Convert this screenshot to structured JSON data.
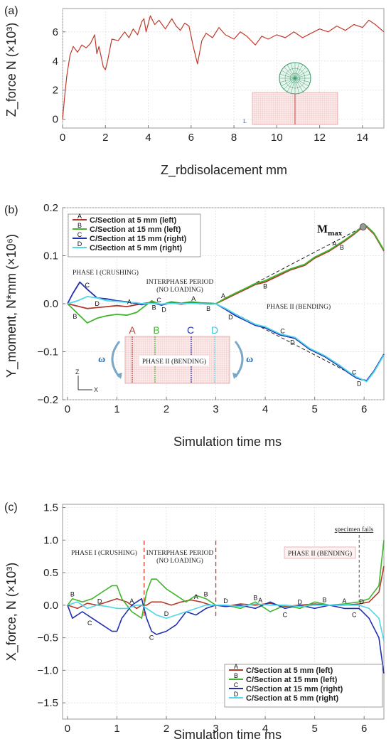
{
  "panel_labels": {
    "a": "(a)",
    "b": "(b)",
    "c": "(c)"
  },
  "colors": {
    "A": "#b23a2a",
    "B": "#3fb52c",
    "C": "#1f2fb0",
    "D": "#4fd6e8",
    "a_line": "#c0392b"
  },
  "panel_a": {
    "xlabel": "Z_rbdisolacement mm",
    "ylabel": "Z_force N (×10³)"
  },
  "panel_b": {
    "xlabel": "Simulation time ms",
    "ylabel": "Y_moment, N*mm (×10⁶)",
    "mmax_label": "M",
    "mmax_sub": "max",
    "phase1": "PHASE I (CRUSHING)",
    "interphase1": "INTERPHASE PERIOD",
    "interphase2": "(NO LOADING)",
    "phase2": "PHASE II (BENDING)",
    "inset_phase": "PHASE II (BENDING)",
    "inset_letters": [
      "A",
      "B",
      "C",
      "D"
    ],
    "omega": "ω",
    "axis_z": "Z",
    "axis_x": "X"
  },
  "panel_c": {
    "xlabel": "Simulation time ms",
    "ylabel": "X_force, N (×10³)",
    "phase1": "PHASE I (CRUSHING)",
    "interphase1": "INTERPHASE PERIOD",
    "interphase2": "(NO LOADING)",
    "phase2": "PHASE II (BENDING)",
    "fails": "specimen fails"
  },
  "legend": [
    {
      "letter": "A",
      "label": "C/Section at 5 mm (left)"
    },
    {
      "letter": "B",
      "label": "C/Section at 15 mm (left)"
    },
    {
      "letter": "C",
      "label": "C/Section at 15 mm (right)"
    },
    {
      "letter": "D",
      "label": "C/Section at 5 mm (right)"
    }
  ],
  "chart_data": [
    {
      "type": "line",
      "xlabel": "Z_rbdisolacement mm",
      "ylabel": "Z_force N (×10³)",
      "xlim": [
        0,
        15
      ],
      "ylim": [
        -0.6,
        7.6
      ],
      "xticks": [
        0,
        2,
        4,
        6,
        8,
        10,
        12,
        14
      ],
      "yticks": [
        0,
        2,
        4,
        6
      ],
      "grid": true,
      "series": [
        {
          "x": [
            0,
            0.1,
            0.2,
            0.35,
            0.5,
            0.7,
            0.9,
            1.1,
            1.3,
            1.5,
            1.6,
            1.7,
            1.9,
            2.0,
            2.1,
            2.3,
            2.6,
            2.9,
            3.1,
            3.3,
            3.5,
            3.7,
            3.8,
            3.9,
            4.1,
            4.3,
            4.5,
            4.8,
            5.1,
            5.3,
            5.5,
            5.7,
            5.9,
            6.1,
            6.3,
            6.5,
            6.7,
            7.0,
            7.3,
            7.6,
            8.0,
            8.3,
            8.6,
            9.0,
            9.3,
            9.6,
            10.0,
            10.4,
            10.8,
            11.2,
            11.6,
            12.0,
            12.4,
            12.8,
            13.2,
            13.6,
            14.0,
            14.3,
            14.6,
            15.0
          ],
          "y": [
            0,
            1.6,
            3.0,
            4.4,
            5.0,
            4.6,
            5.1,
            4.9,
            5.2,
            5.8,
            4.5,
            5.0,
            3.6,
            3.4,
            4.0,
            5.5,
            5.4,
            6.0,
            5.6,
            6.2,
            5.8,
            6.7,
            6.9,
            6.0,
            7.1,
            6.5,
            6.8,
            6.2,
            6.9,
            6.4,
            6.1,
            6.6,
            6.4,
            5.0,
            3.8,
            5.4,
            5.9,
            5.6,
            6.3,
            5.8,
            5.5,
            6.0,
            5.7,
            5.1,
            5.7,
            5.5,
            5.8,
            5.6,
            6.0,
            5.6,
            5.9,
            6.2,
            6.0,
            6.4,
            6.1,
            6.5,
            6.3,
            6.8,
            6.5,
            6.0
          ]
        }
      ]
    },
    {
      "type": "line",
      "xlabel": "Simulation time ms",
      "ylabel": "Y_moment, N*mm (×10⁶)",
      "xlim": [
        -0.1,
        6.4
      ],
      "ylim": [
        -0.2,
        0.2
      ],
      "xticks": [
        0,
        1,
        2,
        3,
        4,
        5,
        6
      ],
      "yticks": [
        -0.2,
        -0.1,
        0.0,
        0.1,
        0.2
      ],
      "grid": true,
      "legend": "top-left",
      "series": [
        {
          "name": "C/Section at 5 mm (left)",
          "x": [
            0,
            0.2,
            0.4,
            0.6,
            0.8,
            1.0,
            1.2,
            1.4,
            1.5,
            1.7,
            1.9,
            2.1,
            2.3,
            2.5,
            2.7,
            2.9,
            3.0,
            3.2,
            3.4,
            3.6,
            3.8,
            4.0,
            4.2,
            4.5,
            4.8,
            5.0,
            5.3,
            5.6,
            5.8,
            5.95,
            6.05,
            6.2,
            6.4
          ],
          "y": [
            0.0,
            -0.005,
            -0.01,
            -0.008,
            -0.006,
            -0.004,
            -0.006,
            -0.002,
            0.0,
            0.003,
            -0.002,
            0.002,
            -0.001,
            0.002,
            0.0,
            0.001,
            0.0,
            0.01,
            0.02,
            0.03,
            0.04,
            0.045,
            0.055,
            0.07,
            0.08,
            0.095,
            0.11,
            0.13,
            0.145,
            0.158,
            0.16,
            0.145,
            0.11
          ]
        },
        {
          "name": "C/Section at 15 mm (left)",
          "x": [
            0,
            0.2,
            0.4,
            0.6,
            0.8,
            1.0,
            1.2,
            1.4,
            1.5,
            1.7,
            1.9,
            2.1,
            2.3,
            2.5,
            2.7,
            2.9,
            3.0,
            3.2,
            3.4,
            3.6,
            3.8,
            4.0,
            4.2,
            4.5,
            4.8,
            5.0,
            5.3,
            5.6,
            5.8,
            5.95,
            6.05,
            6.2,
            6.4
          ],
          "y": [
            0.0,
            -0.02,
            -0.04,
            -0.03,
            -0.025,
            -0.022,
            -0.024,
            -0.018,
            -0.01,
            0.006,
            -0.002,
            0.004,
            0.001,
            0.004,
            0.002,
            0.001,
            0.0,
            0.012,
            0.022,
            0.032,
            0.042,
            0.048,
            0.058,
            0.072,
            0.082,
            0.097,
            0.112,
            0.132,
            0.147,
            0.16,
            0.162,
            0.147,
            0.112
          ]
        },
        {
          "name": "C/Section at 15 mm (right)",
          "x": [
            0,
            0.1,
            0.25,
            0.4,
            0.6,
            0.8,
            1.0,
            1.2,
            1.4,
            1.5,
            1.7,
            1.9,
            2.1,
            2.3,
            2.5,
            2.7,
            2.9,
            3.0,
            3.2,
            3.4,
            3.6,
            3.8,
            4.0,
            4.3,
            4.6,
            4.9,
            5.2,
            5.5,
            5.7,
            5.85,
            5.95,
            6.05,
            6.2,
            6.4
          ],
          "y": [
            0.0,
            0.02,
            0.045,
            0.03,
            0.012,
            0.01,
            0.006,
            0.004,
            0.0,
            -0.002,
            0.002,
            -0.003,
            0.002,
            0.0,
            0.002,
            0.0,
            -0.001,
            0.0,
            -0.012,
            -0.025,
            -0.035,
            -0.045,
            -0.05,
            -0.065,
            -0.072,
            -0.095,
            -0.11,
            -0.13,
            -0.145,
            -0.155,
            -0.158,
            -0.16,
            -0.14,
            -0.105
          ]
        },
        {
          "name": "C/Section at 5 mm (right)",
          "x": [
            0,
            0.2,
            0.4,
            0.6,
            0.8,
            1.0,
            1.2,
            1.4,
            1.5,
            1.7,
            1.9,
            2.1,
            2.3,
            2.5,
            2.7,
            2.9,
            3.0,
            3.2,
            3.4,
            3.6,
            3.8,
            4.0,
            4.3,
            4.6,
            4.9,
            5.2,
            5.5,
            5.7,
            5.85,
            5.95,
            6.05,
            6.2,
            6.4
          ],
          "y": [
            0.0,
            0.006,
            0.015,
            0.012,
            0.006,
            0.005,
            0.003,
            0.002,
            0.0,
            0.001,
            -0.001,
            0.001,
            0.0,
            0.001,
            0.0,
            -0.001,
            0.0,
            -0.01,
            -0.022,
            -0.033,
            -0.043,
            -0.048,
            -0.063,
            -0.07,
            -0.093,
            -0.108,
            -0.128,
            -0.143,
            -0.153,
            -0.157,
            -0.162,
            -0.142,
            -0.107
          ]
        }
      ]
    },
    {
      "type": "line",
      "xlabel": "Simulation time ms",
      "ylabel": "X_force, N (×10³)",
      "xlim": [
        -0.1,
        6.4
      ],
      "ylim": [
        -1.75,
        1.55
      ],
      "xticks": [
        0,
        1,
        2,
        3,
        4,
        5,
        6
      ],
      "yticks": [
        -1.5,
        -1.0,
        -0.5,
        0.0,
        0.5,
        1.0,
        1.5
      ],
      "grid": true,
      "legend": "bottom-right",
      "series": [
        {
          "name": "C/Section at 5 mm (left)",
          "x": [
            0,
            0.2,
            0.4,
            0.6,
            0.8,
            1.0,
            1.2,
            1.4,
            1.5,
            1.6,
            1.7,
            1.9,
            2.1,
            2.3,
            2.5,
            2.7,
            2.9,
            3.0,
            3.2,
            3.5,
            3.8,
            4.1,
            4.4,
            4.7,
            5.0,
            5.3,
            5.6,
            5.9,
            6.1,
            6.3,
            6.4
          ],
          "y": [
            0.0,
            -0.05,
            0.03,
            0.0,
            0.05,
            0.1,
            0.05,
            -0.05,
            0.0,
            0.0,
            0.05,
            0.05,
            0.0,
            0.05,
            0.08,
            0.05,
            0.0,
            0.0,
            -0.02,
            0.02,
            0.0,
            0.03,
            -0.02,
            0.0,
            0.02,
            0.0,
            0.0,
            0.02,
            0.05,
            0.2,
            0.6
          ]
        },
        {
          "name": "C/Section at 15 mm (left)",
          "x": [
            0,
            0.1,
            0.3,
            0.5,
            0.7,
            0.9,
            1.0,
            1.1,
            1.3,
            1.5,
            1.6,
            1.7,
            1.8,
            2.0,
            2.2,
            2.4,
            2.6,
            2.8,
            3.0,
            3.2,
            3.5,
            3.8,
            4.1,
            4.4,
            4.7,
            5.0,
            5.3,
            5.6,
            5.9,
            6.1,
            6.3,
            6.4
          ],
          "y": [
            0.0,
            0.1,
            0.05,
            0.1,
            0.2,
            0.3,
            0.3,
            0.1,
            -0.1,
            -0.2,
            0.2,
            0.4,
            0.4,
            0.25,
            0.15,
            0.05,
            0.15,
            0.1,
            0.0,
            0.0,
            -0.05,
            0.05,
            -0.1,
            0.0,
            -0.05,
            0.05,
            0.0,
            0.02,
            0.05,
            0.1,
            0.3,
            1.0
          ]
        },
        {
          "name": "C/Section at 15 mm (right)",
          "x": [
            0,
            0.1,
            0.3,
            0.5,
            0.7,
            0.9,
            1.0,
            1.1,
            1.3,
            1.5,
            1.6,
            1.7,
            1.8,
            2.0,
            2.2,
            2.4,
            2.6,
            2.8,
            3.0,
            3.2,
            3.5,
            3.8,
            4.1,
            4.4,
            4.7,
            5.0,
            5.3,
            5.6,
            5.9,
            6.1,
            6.3,
            6.4
          ],
          "y": [
            0.0,
            -0.2,
            -0.1,
            -0.2,
            -0.3,
            -0.4,
            -0.4,
            -0.2,
            0.0,
            0.1,
            -0.2,
            -0.4,
            -0.45,
            -0.4,
            -0.3,
            -0.1,
            -0.15,
            -0.05,
            0.0,
            -0.02,
            0.0,
            -0.05,
            0.05,
            -0.05,
            0.0,
            -0.05,
            0.0,
            -0.05,
            -0.05,
            -0.2,
            -0.5,
            -1.05
          ]
        },
        {
          "name": "C/Section at 5 mm (right)",
          "x": [
            0,
            0.2,
            0.4,
            0.6,
            0.8,
            1.0,
            1.2,
            1.4,
            1.5,
            1.6,
            1.8,
            2.0,
            2.2,
            2.4,
            2.6,
            2.8,
            3.0,
            3.2,
            3.5,
            3.8,
            4.1,
            4.4,
            4.7,
            5.0,
            5.3,
            5.6,
            5.9,
            6.1,
            6.3,
            6.4
          ],
          "y": [
            0.0,
            0.05,
            -0.05,
            0.0,
            -0.02,
            -0.05,
            -0.05,
            0.0,
            0.0,
            -0.05,
            -0.15,
            -0.2,
            -0.15,
            -0.1,
            -0.05,
            0.0,
            0.0,
            0.0,
            -0.02,
            0.02,
            0.0,
            0.0,
            -0.02,
            0.0,
            0.0,
            0.0,
            0.0,
            -0.05,
            -0.2,
            -0.55
          ]
        }
      ]
    }
  ]
}
